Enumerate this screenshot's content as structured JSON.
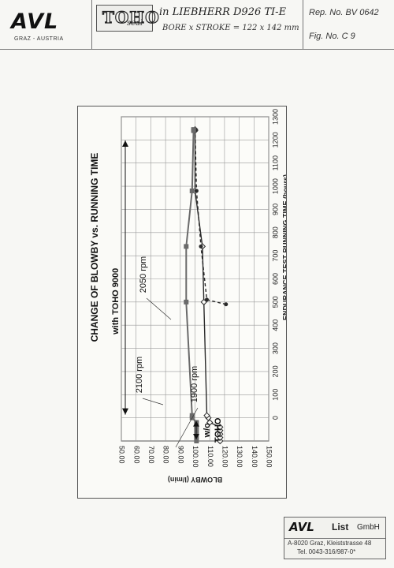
{
  "header": {
    "logo": "AVL",
    "logo_sub": "GRAZ - AUSTRIA",
    "toho": "TOHO",
    "toho_script": "seal",
    "engine": "in LIEBHERR D926 TI-E",
    "bore": "BORE x STROKE = 122 x 142 mm",
    "report": "Rep. No. BV 0642",
    "figure": "Fig. No. C 9"
  },
  "footer": {
    "logo": "AVL",
    "company": "List",
    "company_suffix": "GmbH",
    "address": "A-8020 Graz, Kleiststrasse 48",
    "tel": "Tel. 0043-316/987-0*"
  },
  "chart_data": {
    "type": "line",
    "title": "CHANGE OF BLOWBY vs. RUNNING TIME",
    "xlabel": "ENDURANCE TEST RUNNING TIME (hours)",
    "ylabel": "BLOWBY (l/min)",
    "xlim": [
      -100,
      1300
    ],
    "ylim": [
      50,
      150
    ],
    "x_ticks": [
      0,
      100,
      200,
      300,
      400,
      500,
      600,
      700,
      800,
      900,
      1000,
      1100,
      1200,
      1300
    ],
    "y_ticks": [
      50.0,
      60.0,
      70.0,
      80.0,
      90.0,
      100.0,
      110.0,
      120.0,
      130.0,
      140.0,
      150.0
    ],
    "grid": true,
    "series": [
      {
        "name": "2050 rpm",
        "style": "solid",
        "marker": "diamond",
        "color": "#2a2a2a",
        "points": [
          [
            -100,
            117
          ],
          [
            -85,
            117
          ],
          [
            -70,
            117
          ],
          [
            -55,
            117
          ],
          [
            -40,
            117
          ],
          [
            -20,
            110
          ],
          [
            0,
            109
          ],
          [
            10,
            108
          ],
          [
            500,
            106
          ],
          [
            740,
            105
          ],
          [
            980,
            100
          ],
          [
            1240,
            100
          ],
          [
            1245,
            100
          ]
        ]
      },
      {
        "name": "2100 rpm",
        "style": "dashed",
        "marker": "circle",
        "color": "#2a2a2a",
        "points": [
          [
            490,
            121
          ],
          [
            510,
            108
          ],
          [
            740,
            104
          ],
          [
            980,
            101
          ],
          [
            1240,
            100
          ],
          [
            1245,
            100
          ]
        ]
      },
      {
        "name": "1900 rpm",
        "style": "solid",
        "marker": "square",
        "color": "#6a6a6a",
        "points": [
          [
            -100,
            101
          ],
          [
            -80,
            101
          ],
          [
            -60,
            101
          ],
          [
            -40,
            101
          ],
          [
            -20,
            101
          ],
          [
            0,
            98
          ],
          [
            10,
            98
          ],
          [
            500,
            94
          ],
          [
            740,
            94
          ],
          [
            980,
            98
          ],
          [
            1240,
            99
          ],
          [
            1245,
            99
          ]
        ]
      }
    ],
    "annotations": [
      {
        "text": "with TOHO 9000"
      },
      {
        "text": "w/o"
      },
      {
        "text": "TOHO"
      }
    ]
  }
}
